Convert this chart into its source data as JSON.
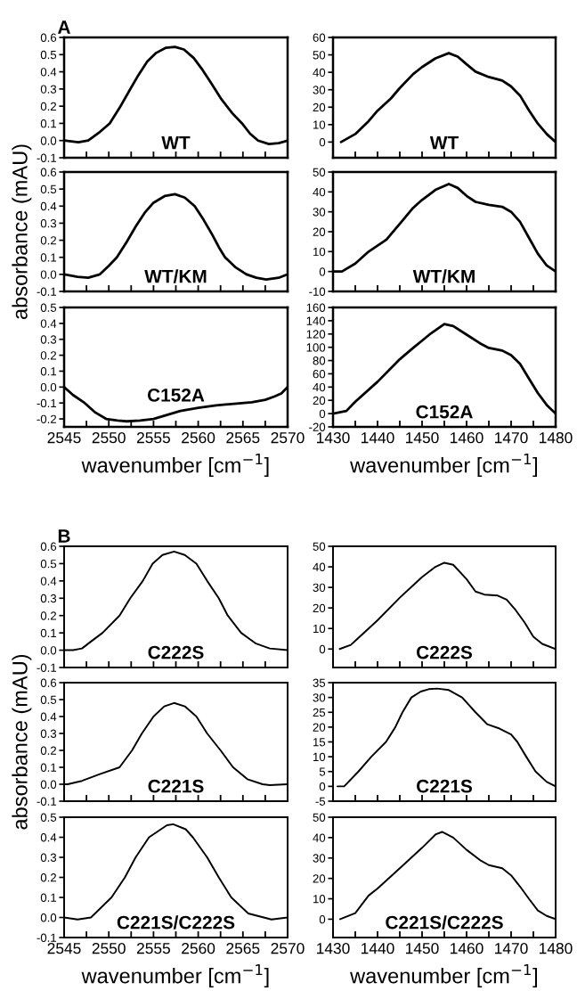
{
  "chart_data": [
    {
      "type": "line",
      "title": "A",
      "annotations": [
        "WT"
      ],
      "color": "#000000",
      "tick_labels": "y",
      "x": [
        2545,
        2546.6,
        2547.7,
        2549,
        2550.1,
        2551.2,
        2552.3,
        2553.3,
        2554.3,
        2555.3,
        2556.4,
        2557.4,
        2558.4,
        2559.5,
        2560.5,
        2561.5,
        2562.6,
        2563.8,
        2564.9,
        2565.8,
        2566.7,
        2567.9,
        2569,
        2570
      ],
      "values": [
        0,
        -0.01,
        0,
        0.05,
        0.1,
        0.19,
        0.29,
        0.38,
        0.46,
        0.51,
        0.54,
        0.545,
        0.53,
        0.48,
        0.41,
        0.33,
        0.24,
        0.16,
        0.1,
        0.04,
        0,
        -0.02,
        -0.015,
        0
      ],
      "xlim": [
        2545,
        2570
      ],
      "xticks": [
        2545,
        {
          "value": 2547.5,
          "label": null
        },
        2550,
        {
          "value": 2552.5,
          "label": null
        },
        2555,
        {
          "value": 2557.5,
          "label": null
        },
        2560,
        {
          "value": 2562.5,
          "label": null
        },
        2565,
        {
          "value": 2567.5,
          "label": null
        },
        2570
      ],
      "ylim": [
        -0.1,
        0.6
      ],
      "yticks": [
        {
          "value": -0.1,
          "label": "-0.1"
        },
        {
          "value": 0,
          "label": "0.0"
        },
        {
          "value": 0.1,
          "label": "0.1"
        },
        {
          "value": 0.2,
          "label": "0.2"
        },
        {
          "value": 0.3,
          "label": "0.3"
        },
        {
          "value": 0.4,
          "label": "0.4"
        },
        {
          "value": 0.5,
          "label": "0.5"
        },
        {
          "value": 0.6,
          "label": "0.6"
        }
      ]
    },
    {
      "type": "line",
      "annotations": [
        "WT"
      ],
      "color": "#000000",
      "tick_labels": "y",
      "x": [
        1431.8,
        1435,
        1438,
        1440,
        1443,
        1445,
        1448,
        1450,
        1453,
        1456,
        1458,
        1460,
        1462,
        1465,
        1468,
        1470,
        1472,
        1474,
        1476,
        1478,
        1480
      ],
      "values": [
        0,
        4.6,
        12,
        18,
        25,
        31,
        39,
        43,
        48,
        51,
        49,
        44.6,
        40.4,
        37.3,
        35.3,
        31.9,
        26.7,
        18.2,
        10.6,
        4.6,
        0
      ],
      "xlim": [
        1430,
        1480
      ],
      "xticks": [
        1430,
        {
          "value": 1435,
          "label": null
        },
        1440,
        {
          "value": 1445,
          "label": null
        },
        1450,
        {
          "value": 1455,
          "label": null
        },
        1460,
        {
          "value": 1465,
          "label": null
        },
        1470,
        {
          "value": 1475,
          "label": null
        },
        1480
      ],
      "ylim": [
        -9,
        60
      ],
      "yticks": [
        0,
        10,
        20,
        30,
        40,
        50,
        60
      ]
    },
    {
      "type": "line",
      "annotations": [
        "WT/KM"
      ],
      "ylabel": "absorbance (mAU)",
      "color": "#000000",
      "tick_labels": "y",
      "x": [
        2545,
        2546.5,
        2547.7,
        2549,
        2550,
        2550.9,
        2552,
        2553,
        2554,
        2555,
        2556.3,
        2557.4,
        2558.5,
        2559.6,
        2560.6,
        2561.6,
        2562.3,
        2563,
        2564.2,
        2565.4,
        2566.5,
        2567.6,
        2569,
        2570
      ],
      "values": [
        0,
        -0.015,
        -0.02,
        0,
        0.05,
        0.1,
        0.19,
        0.28,
        0.36,
        0.42,
        0.46,
        0.47,
        0.45,
        0.4,
        0.32,
        0.23,
        0.16,
        0.1,
        0.04,
        0,
        -0.02,
        -0.03,
        -0.02,
        0
      ],
      "xlim": [
        2545,
        2570
      ],
      "xticks": [
        2545,
        {
          "value": 2547.5,
          "label": null
        },
        2550,
        {
          "value": 2552.5,
          "label": null
        },
        2555,
        {
          "value": 2557.5,
          "label": null
        },
        2560,
        {
          "value": 2562.5,
          "label": null
        },
        2565,
        {
          "value": 2567.5,
          "label": null
        },
        2570
      ],
      "ylim": [
        -0.1,
        0.6
      ],
      "yticks": [
        {
          "value": -0.1,
          "label": "-0.1"
        },
        {
          "value": 0,
          "label": "0.0"
        },
        {
          "value": 0.1,
          "label": "0.1"
        },
        {
          "value": 0.2,
          "label": "0.2"
        },
        {
          "value": 0.3,
          "label": "0.3"
        },
        {
          "value": 0.4,
          "label": "0.4"
        },
        {
          "value": 0.5,
          "label": "0.5"
        },
        {
          "value": 0.6,
          "label": "0.6"
        }
      ]
    },
    {
      "type": "line",
      "annotations": [
        "WT/KM"
      ],
      "color": "#000000",
      "tick_labels": "y",
      "x": [
        1430,
        1432,
        1435,
        1438,
        1440,
        1442,
        1445,
        1448,
        1450,
        1453,
        1456,
        1458,
        1460,
        1462,
        1465,
        1468,
        1470,
        1472,
        1474,
        1476,
        1478,
        1480
      ],
      "values": [
        0,
        0,
        4,
        10,
        13,
        16,
        24,
        32,
        36,
        41,
        44,
        42,
        38,
        35,
        33.5,
        32.5,
        30,
        25,
        17,
        9,
        3,
        0
      ],
      "xlim": [
        1430,
        1480
      ],
      "xticks": [
        1430,
        {
          "value": 1435,
          "label": null
        },
        1440,
        {
          "value": 1445,
          "label": null
        },
        1450,
        {
          "value": 1455,
          "label": null
        },
        1460,
        {
          "value": 1465,
          "label": null
        },
        1470,
        {
          "value": 1475,
          "label": null
        },
        1480
      ],
      "ylim": [
        -10,
        50
      ],
      "yticks": [
        -10,
        0,
        10,
        20,
        30,
        40,
        50
      ]
    },
    {
      "type": "line",
      "annotations": [
        "C152A"
      ],
      "xlabel": "wavenumber [cm$^{−1}$]",
      "color": "#000000",
      "x": [
        2545,
        2546,
        2547.3,
        2548.5,
        2549.7,
        2551,
        2552,
        2553.5,
        2555,
        2556.5,
        2558,
        2560,
        2562,
        2564,
        2566,
        2567.5,
        2568.5,
        2569.3,
        2570
      ],
      "values": [
        0,
        -0.05,
        -0.1,
        -0.16,
        -0.2,
        -0.21,
        -0.215,
        -0.21,
        -0.2,
        -0.175,
        -0.15,
        -0.13,
        -0.115,
        -0.105,
        -0.095,
        -0.08,
        -0.06,
        -0.04,
        0
      ],
      "xlim": [
        2545,
        2570
      ],
      "xticks": [
        2545,
        {
          "value": 2547.5,
          "label": null
        },
        2550,
        {
          "value": 2552.5,
          "label": null
        },
        2555,
        {
          "value": 2557.5,
          "label": null
        },
        2560,
        {
          "value": 2562.5,
          "label": null
        },
        2565,
        {
          "value": 2567.5,
          "label": null
        },
        2570
      ],
      "ylim": [
        -0.25,
        0.5
      ],
      "yticks": [
        {
          "value": -0.2,
          "label": "-0.2"
        },
        {
          "value": -0.1,
          "label": "-0.1"
        },
        {
          "value": 0,
          "label": "0.0"
        },
        {
          "value": 0.1,
          "label": "0.1"
        },
        {
          "value": 0.2,
          "label": "0.2"
        },
        {
          "value": 0.3,
          "label": "0.3"
        },
        {
          "value": 0.4,
          "label": "0.4"
        },
        {
          "value": 0.5,
          "label": "0.5"
        }
      ]
    },
    {
      "type": "line",
      "annotations": [
        "C152A"
      ],
      "xlabel": "wavenumber [cm$^{−1}$]",
      "color": "#000000",
      "x": [
        1430,
        1433,
        1435,
        1440,
        1445,
        1448,
        1450,
        1452,
        1455,
        1457,
        1460,
        1463,
        1465,
        1468,
        1470,
        1472,
        1474,
        1476,
        1478,
        1480
      ],
      "values": [
        0,
        4,
        18,
        48,
        82,
        99,
        110,
        121,
        135,
        132,
        119,
        106,
        99,
        95,
        88,
        75,
        53,
        31,
        13,
        0
      ],
      "xlim": [
        1430,
        1480
      ],
      "xticks": [
        1430,
        {
          "value": 1435,
          "label": null
        },
        1440,
        {
          "value": 1445,
          "label": null
        },
        1450,
        {
          "value": 1455,
          "label": null
        },
        1460,
        {
          "value": 1465,
          "label": null
        },
        1470,
        {
          "value": 1475,
          "label": null
        },
        1480
      ],
      "ylim": [
        -20,
        160
      ],
      "yticks": [
        -20,
        0,
        20,
        40,
        60,
        80,
        100,
        120,
        140,
        160
      ]
    },
    {
      "type": "line",
      "title": "B",
      "annotations": [
        "C222S"
      ],
      "color": "#000000",
      "tick_labels": "y",
      "x": [
        2545,
        2546,
        2547,
        2548,
        2549.3,
        2551.2,
        2552.4,
        2553.8,
        2554.9,
        2556,
        2557.3,
        2558.5,
        2559.8,
        2561,
        2562.3,
        2563.3,
        2564.8,
        2566.4,
        2568,
        2570
      ],
      "values": [
        0,
        0,
        0.01,
        0.05,
        0.1,
        0.2,
        0.3,
        0.4,
        0.5,
        0.55,
        0.57,
        0.55,
        0.5,
        0.4,
        0.3,
        0.2,
        0.1,
        0.04,
        0.01,
        0
      ],
      "xlim": [
        2545,
        2570
      ],
      "xticks": [
        2545,
        {
          "value": 2547.5,
          "label": null
        },
        2550,
        {
          "value": 2552.5,
          "label": null
        },
        2555,
        {
          "value": 2557.5,
          "label": null
        },
        2560,
        {
          "value": 2562.5,
          "label": null
        },
        2565,
        {
          "value": 2567.5,
          "label": null
        },
        2570
      ],
      "ylim": [
        -0.1,
        0.6
      ],
      "yticks": [
        {
          "value": -0.1,
          "label": "-0.1"
        },
        {
          "value": 0,
          "label": "0.0"
        },
        {
          "value": 0.1,
          "label": "0.1"
        },
        {
          "value": 0.2,
          "label": "0.2"
        },
        {
          "value": 0.3,
          "label": "0.3"
        },
        {
          "value": 0.4,
          "label": "0.4"
        },
        {
          "value": 0.5,
          "label": "0.5"
        },
        {
          "value": 0.6,
          "label": "0.6"
        }
      ]
    },
    {
      "type": "line",
      "annotations": [
        "C222S"
      ],
      "color": "#000000",
      "tick_labels": "y",
      "x": [
        1431.5,
        1434,
        1435,
        1438,
        1440,
        1445,
        1448,
        1450,
        1453,
        1455,
        1457,
        1460,
        1462,
        1464,
        1467,
        1469,
        1471,
        1473,
        1475,
        1477,
        1480
      ],
      "values": [
        0,
        2,
        4,
        10,
        14,
        25,
        31,
        35,
        40,
        42,
        41,
        34,
        28,
        26.5,
        26,
        24,
        19,
        13,
        6,
        2.5,
        0
      ],
      "xlim": [
        1430,
        1480
      ],
      "xticks": [
        1430,
        {
          "value": 1435,
          "label": null
        },
        1440,
        {
          "value": 1445,
          "label": null
        },
        1450,
        {
          "value": 1455,
          "label": null
        },
        1460,
        {
          "value": 1465,
          "label": null
        },
        1470,
        {
          "value": 1475,
          "label": null
        },
        1480
      ],
      "ylim": [
        -9,
        50
      ],
      "yticks": [
        0,
        10,
        20,
        30,
        40,
        50
      ]
    },
    {
      "type": "line",
      "annotations": [
        "C221S"
      ],
      "ylabel": "absorbance (mAU)",
      "color": "#000000",
      "tick_labels": "y",
      "x": [
        2545,
        2545.4,
        2547,
        2549,
        2551.2,
        2552.6,
        2553.7,
        2555,
        2556.2,
        2557.3,
        2558.5,
        2559.8,
        2561,
        2562.5,
        2563.9,
        2565.5,
        2567.2,
        2568,
        2570
      ],
      "values": [
        0,
        0,
        0.02,
        0.06,
        0.1,
        0.2,
        0.3,
        0.4,
        0.46,
        0.48,
        0.46,
        0.4,
        0.3,
        0.2,
        0.1,
        0.03,
        0,
        -0.005,
        0
      ],
      "xlim": [
        2545,
        2570
      ],
      "xticks": [
        2545,
        {
          "value": 2547.5,
          "label": null
        },
        2550,
        {
          "value": 2552.5,
          "label": null
        },
        2555,
        {
          "value": 2557.5,
          "label": null
        },
        2560,
        {
          "value": 2562.5,
          "label": null
        },
        2565,
        {
          "value": 2567.5,
          "label": null
        },
        2570
      ],
      "ylim": [
        -0.1,
        0.6
      ],
      "yticks": [
        {
          "value": -0.1,
          "label": "-0.1"
        },
        {
          "value": 0,
          "label": "0.0"
        },
        {
          "value": 0.1,
          "label": "0.1"
        },
        {
          "value": 0.2,
          "label": "0.2"
        },
        {
          "value": 0.3,
          "label": "0.3"
        },
        {
          "value": 0.4,
          "label": "0.4"
        },
        {
          "value": 0.5,
          "label": "0.5"
        },
        {
          "value": 0.6,
          "label": "0.6"
        }
      ]
    },
    {
      "type": "line",
      "annotations": [
        "C221S"
      ],
      "color": "#000000",
      "tick_labels": "y",
      "x": [
        1431,
        1432.5,
        1435.7,
        1438.6,
        1441.9,
        1444,
        1445.6,
        1447.6,
        1449.7,
        1451.5,
        1453.4,
        1456,
        1459,
        1462,
        1464.6,
        1467.4,
        1470,
        1471.4,
        1473.4,
        1475.5,
        1478,
        1480
      ],
      "values": [
        0,
        0,
        5,
        10,
        15,
        20,
        25,
        30,
        32,
        32.8,
        33,
        32.5,
        30,
        25,
        21,
        19.5,
        17.5,
        15,
        10,
        5,
        1.5,
        0
      ],
      "xlim": [
        1430,
        1480
      ],
      "xticks": [
        1430,
        {
          "value": 1435,
          "label": null
        },
        1440,
        {
          "value": 1445,
          "label": null
        },
        1450,
        {
          "value": 1455,
          "label": null
        },
        1460,
        {
          "value": 1465,
          "label": null
        },
        1470,
        {
          "value": 1475,
          "label": null
        },
        1480
      ],
      "ylim": [
        -5,
        35
      ],
      "yticks": [
        -5,
        0,
        5,
        10,
        15,
        20,
        25,
        30,
        35
      ]
    },
    {
      "type": "line",
      "annotations": [
        "C221S/C222S"
      ],
      "xlabel": "wavenumber [cm$^{−1}$]",
      "color": "#000000",
      "x": [
        2545,
        2546.5,
        2548,
        2550.3,
        2551.8,
        2553,
        2554.5,
        2556.5,
        2557.2,
        2558.6,
        2559.4,
        2561,
        2562.3,
        2563.7,
        2565.6,
        2568.2,
        2570
      ],
      "values": [
        0,
        -0.01,
        0,
        0.1,
        0.2,
        0.3,
        0.4,
        0.46,
        0.465,
        0.44,
        0.4,
        0.3,
        0.2,
        0.1,
        0.02,
        -0.01,
        0
      ],
      "xlim": [
        2545,
        2570
      ],
      "xticks": [
        2545,
        {
          "value": 2547.5,
          "label": null
        },
        2550,
        {
          "value": 2552.5,
          "label": null
        },
        2555,
        {
          "value": 2557.5,
          "label": null
        },
        2560,
        {
          "value": 2562.5,
          "label": null
        },
        2565,
        {
          "value": 2567.5,
          "label": null
        },
        2570
      ],
      "ylim": [
        -0.1,
        0.5
      ],
      "yticks": [
        {
          "value": -0.1,
          "label": "-0.1"
        },
        {
          "value": 0,
          "label": "0.0"
        },
        {
          "value": 0.1,
          "label": "0.1"
        },
        {
          "value": 0.2,
          "label": "0.2"
        },
        {
          "value": 0.3,
          "label": "0.3"
        },
        {
          "value": 0.4,
          "label": "0.4"
        },
        {
          "value": 0.5,
          "label": "0.5"
        }
      ]
    },
    {
      "type": "line",
      "annotations": [
        "C221S/C222S"
      ],
      "xlabel": "wavenumber [cm$^{−1}$]",
      "color": "#000000",
      "x": [
        1431.6,
        1435,
        1438,
        1440,
        1445,
        1450,
        1453,
        1454.5,
        1457,
        1460,
        1463,
        1465,
        1468,
        1470,
        1472,
        1474,
        1476,
        1478,
        1480
      ],
      "values": [
        0,
        3,
        11.6,
        15,
        25,
        35,
        41.5,
        42.8,
        40,
        34,
        29,
        26.5,
        25,
        21.5,
        16,
        10,
        4.3,
        1.6,
        0
      ],
      "xlim": [
        1430,
        1480
      ],
      "xticks": [
        1430,
        {
          "value": 1435,
          "label": null
        },
        1440,
        {
          "value": 1445,
          "label": null
        },
        1450,
        {
          "value": 1455,
          "label": null
        },
        1460,
        {
          "value": 1465,
          "label": null
        },
        1470,
        {
          "value": 1475,
          "label": null
        },
        1480
      ],
      "ylim": [
        -9,
        50
      ],
      "yticks": [
        0,
        10,
        20,
        30,
        40,
        50
      ]
    }
  ]
}
